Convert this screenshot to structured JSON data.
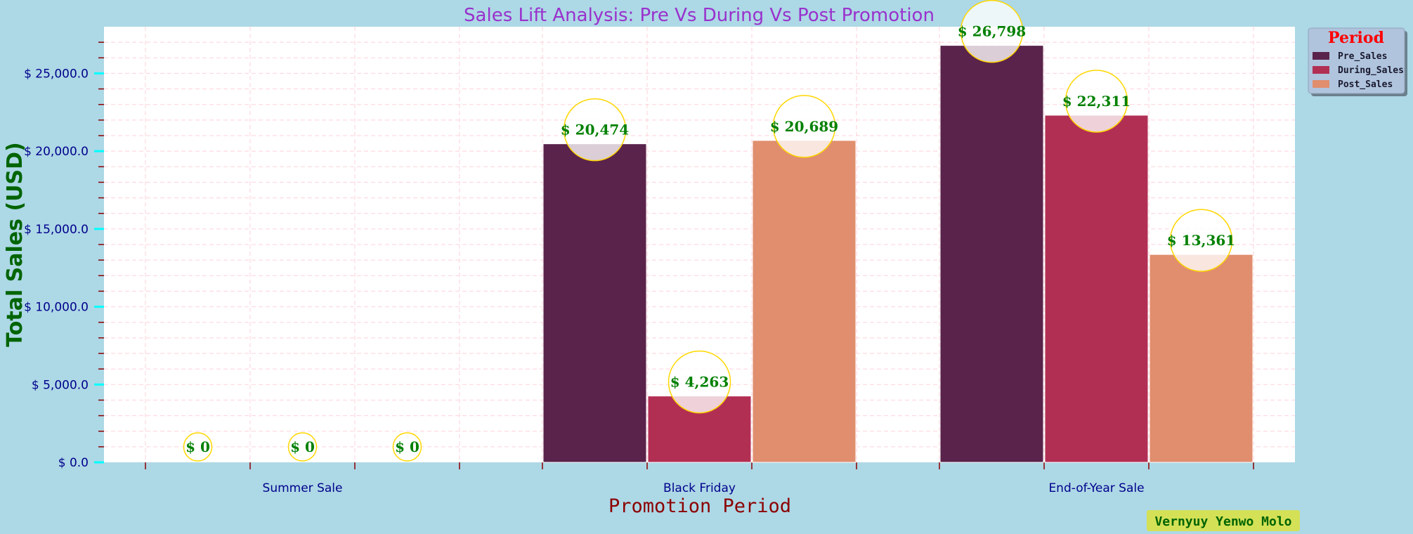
{
  "chart_data": {
    "type": "bar",
    "title": "Sales Lift Analysis: Pre Vs During Vs Post Promotion",
    "xlabel": "Promotion Period",
    "ylabel": "Total Sales (USD)",
    "categories": [
      "Summer Sale",
      "Black Friday",
      "End-of-Year Sale"
    ],
    "series": [
      {
        "name": "Pre_Sales",
        "values": [
          0,
          20474,
          26798
        ],
        "labels": [
          "$ 0",
          "$ 20,474",
          "$ 26,798"
        ],
        "color": "#5A234B"
      },
      {
        "name": "During_Sales",
        "values": [
          0,
          4263,
          22311
        ],
        "labels": [
          "$ 0",
          "$ 4,263",
          "$ 22,311"
        ],
        "color": "#B22F54"
      },
      {
        "name": "Post_Sales",
        "values": [
          0,
          20689,
          13361
        ],
        "labels": [
          "$ 0",
          "$ 20,689",
          "$ 13,361"
        ],
        "color": "#E08E6E"
      }
    ],
    "ylim": [
      0,
      28000
    ],
    "yticks": [
      0,
      5000,
      10000,
      15000,
      20000,
      25000
    ],
    "ytick_labels": [
      "$ 0.0",
      "$ 5,000.0",
      "$ 10,000.0",
      "$ 15,000.0",
      "$ 20,000.0",
      "$ 25,000.0"
    ],
    "grid": true,
    "legend": {
      "title": "Period",
      "position": "top-right"
    },
    "watermark": "Vernyuy Yenwo Molo",
    "colors": {
      "background": "#ADD8E6",
      "plot_background": "#FFFFFF",
      "title": "#9932CC",
      "ylabel": "#006400",
      "xlabel": "#8B0000",
      "tick_labels": "#00008B",
      "ytick_marks": "#00FFFF",
      "minor_ticks": "#8B0000",
      "grid": "#FFC0CB",
      "data_labels": "#008000",
      "label_circle_edge": "#FFD700",
      "legend_title": "#FF0000",
      "watermark_bg": "#D4E157"
    }
  }
}
